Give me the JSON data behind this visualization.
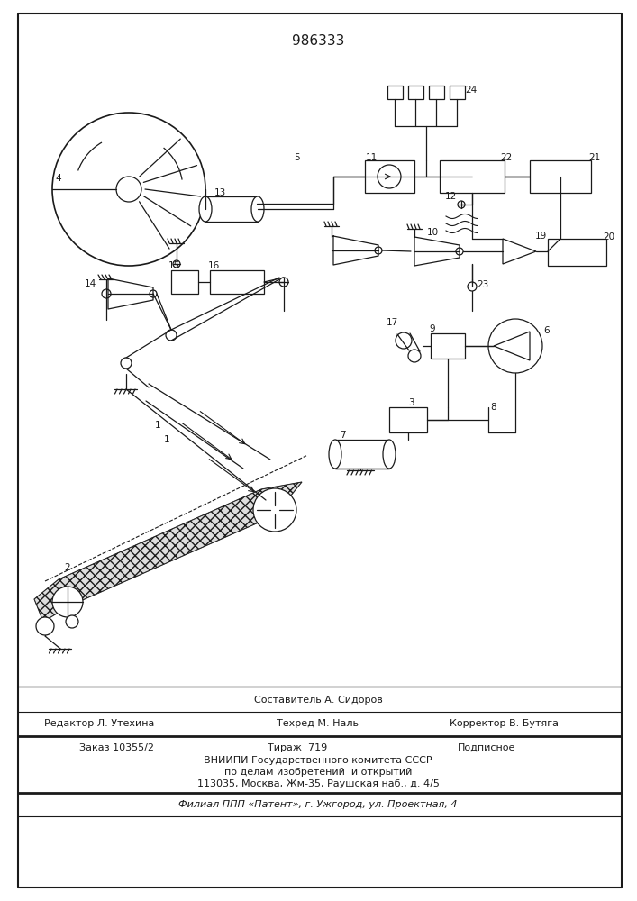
{
  "patent_number": "986333",
  "background_color": "#ffffff",
  "line_color": "#1a1a1a",
  "fig_width": 7.07,
  "fig_height": 10.0,
  "footer_top": "Составитель А. Сидоров",
  "footer_left1": "Редактор Л. Утехина",
  "footer_center1": "Техред М. Наль",
  "footer_right1": "Корректор В. Бутяга",
  "footer_order": "Заказ 10355/2",
  "footer_tirazh": "Тираж  719",
  "footer_podpisnoe": "Подписное",
  "footer_vniip1": "ВНИИПИ Государственного комитета СССР",
  "footer_vniip2": "по делам изобретений  и открытий",
  "footer_addr": "113035, Москва, Жм-35, Раушская наб., д. 4/5",
  "footer_filial": "Филиал ППП «Патент», г. Ужгород, ул. Проектная, 4"
}
